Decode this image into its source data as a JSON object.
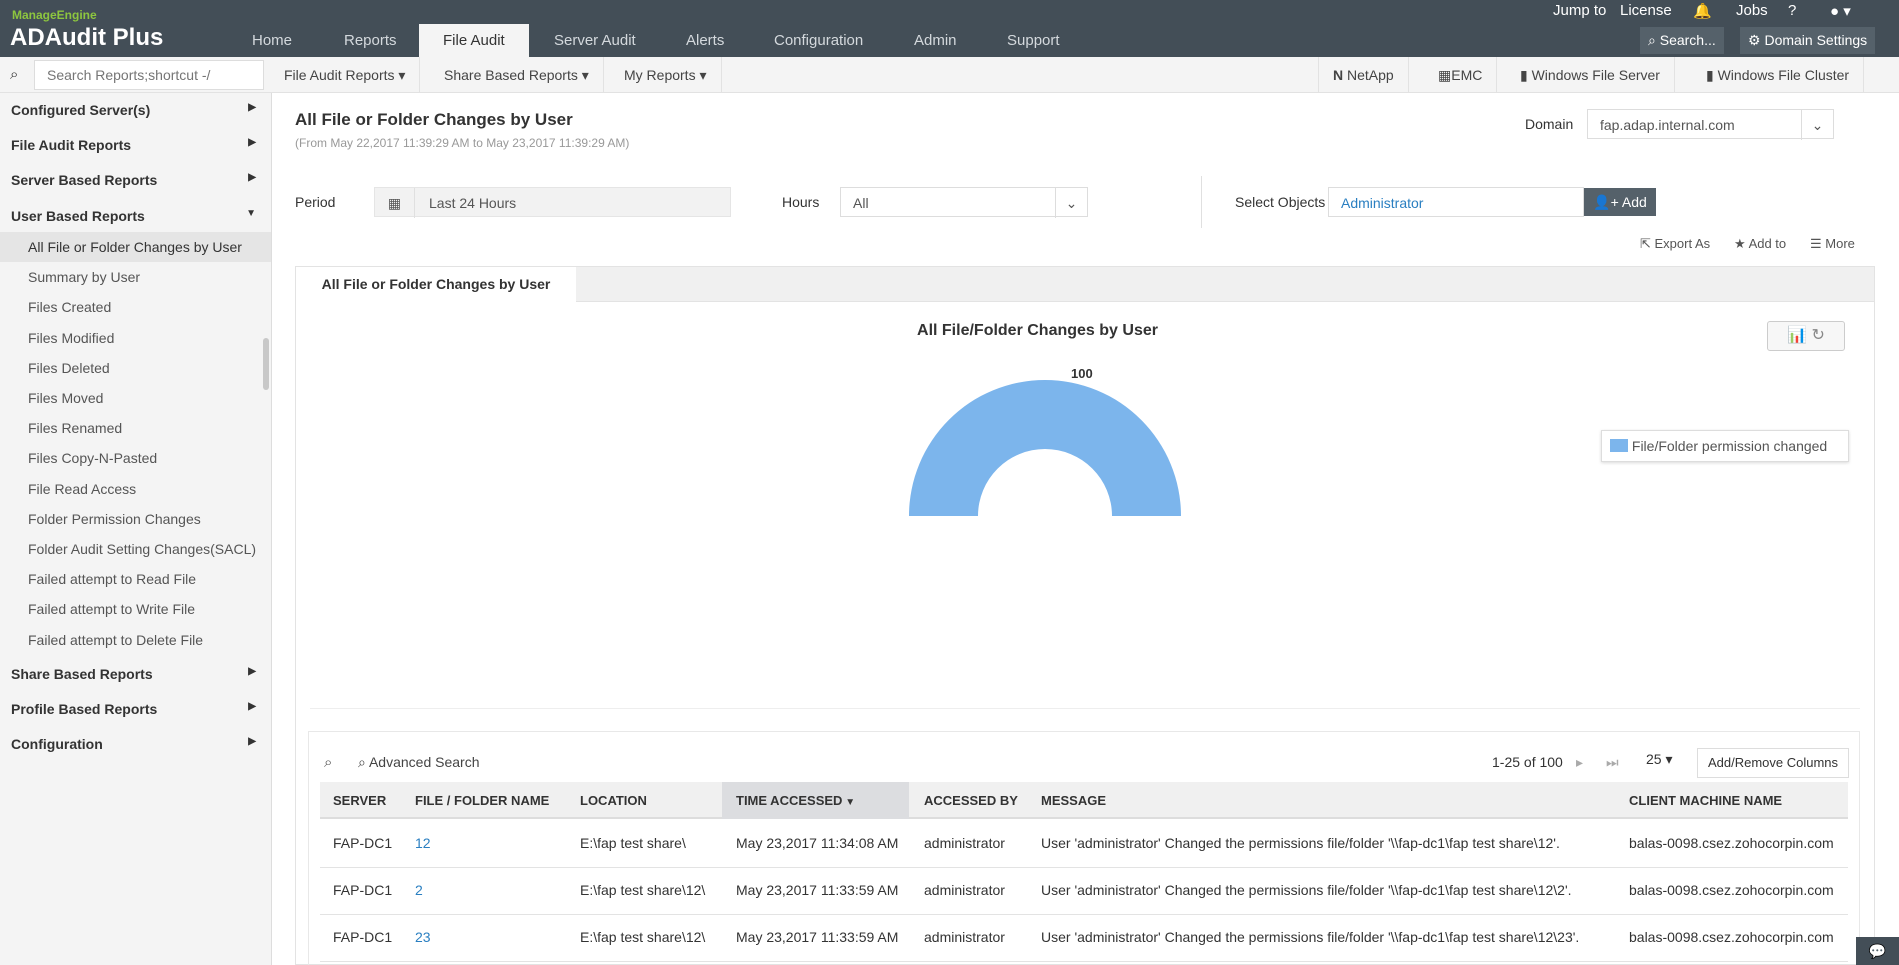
{
  "app": {
    "vendor": "ManageEngine",
    "name": "ADAudit Plus"
  },
  "nav": {
    "tabs": [
      "Home",
      "Reports",
      "File Audit",
      "Server Audit",
      "Alerts",
      "Configuration",
      "Admin",
      "Support"
    ],
    "active": "File Audit"
  },
  "top": {
    "jump_to": "Jump to",
    "license": "License",
    "jobs": "Jobs",
    "help": "?",
    "search": "Search...",
    "domain_settings": "Domain Settings"
  },
  "toolbar": {
    "search_placeholder": "Search Reports;shortcut -/",
    "menus": [
      "File Audit Reports",
      "Share Based Reports",
      "My Reports"
    ],
    "platforms": [
      "NetApp",
      "EMC",
      "Windows File Server",
      "Windows File Cluster"
    ]
  },
  "sidebar": {
    "sections": [
      "Configured Server(s)",
      "File Audit Reports",
      "Server Based Reports",
      "User Based Reports",
      "Share Based Reports",
      "Profile Based Reports",
      "Configuration"
    ],
    "items": [
      "All File or Folder Changes by User",
      "Summary by User",
      "Files Created",
      "Files Modified",
      "Files Deleted",
      "Files Moved",
      "Files Renamed",
      "Files Copy-N-Pasted",
      "File Read Access",
      "Folder Permission Changes",
      "Folder Audit Setting Changes(SACL)",
      "Failed attempt to Read File",
      "Failed attempt to Write File",
      "Failed attempt to Delete File"
    ]
  },
  "report": {
    "title": "All File or Folder Changes by User",
    "range": "(From May 22,2017 11:39:29 AM to May 23,2017 11:39:29 AM)",
    "domain_label": "Domain",
    "domain": "fap.adap.internal.com",
    "period_label": "Period",
    "period": "Last 24 Hours",
    "hours_label": "Hours",
    "hours": "All",
    "objects_label": "Select Objects",
    "object": "Administrator",
    "add": "Add",
    "export": "Export As",
    "add_to": "Add to",
    "more": "More",
    "tab": "All File or Folder Changes by User"
  },
  "chart_data": {
    "type": "pie",
    "style": "semi-donut",
    "title": "All File/Folder Changes by User",
    "categories": [
      "File/Folder permission changed"
    ],
    "values": [
      100
    ],
    "data_labels": [
      "100"
    ],
    "legend": "right",
    "colors": [
      "#7cb5ec"
    ]
  },
  "table": {
    "advanced_search": "Advanced Search",
    "pagination": "1-25 of 100",
    "page_size": "25",
    "add_remove": "Add/Remove Columns",
    "columns": [
      "SERVER",
      "FILE / FOLDER NAME",
      "LOCATION",
      "TIME ACCESSED",
      "ACCESSED BY",
      "MESSAGE",
      "CLIENT MACHINE NAME"
    ],
    "sorted_column": "TIME ACCESSED",
    "rows": [
      [
        "FAP-DC1",
        "12",
        "E:\\fap test share\\",
        "May 23,2017 11:34:08 AM",
        "administrator",
        "User 'administrator' Changed the permissions file/folder '\\\\fap-dc1\\fap test share\\12'.",
        "balas-0098.csez.zohocorpin.com"
      ],
      [
        "FAP-DC1",
        "2",
        "E:\\fap test share\\12\\",
        "May 23,2017 11:33:59 AM",
        "administrator",
        "User 'administrator' Changed the permissions file/folder '\\\\fap-dc1\\fap test share\\12\\2'.",
        "balas-0098.csez.zohocorpin.com"
      ],
      [
        "FAP-DC1",
        "23",
        "E:\\fap test share\\12\\",
        "May 23,2017 11:33:59 AM",
        "administrator",
        "User 'administrator' Changed the permissions file/folder '\\\\fap-dc1\\fap test share\\12\\23'.",
        "balas-0098.csez.zohocorpin.com"
      ]
    ]
  }
}
